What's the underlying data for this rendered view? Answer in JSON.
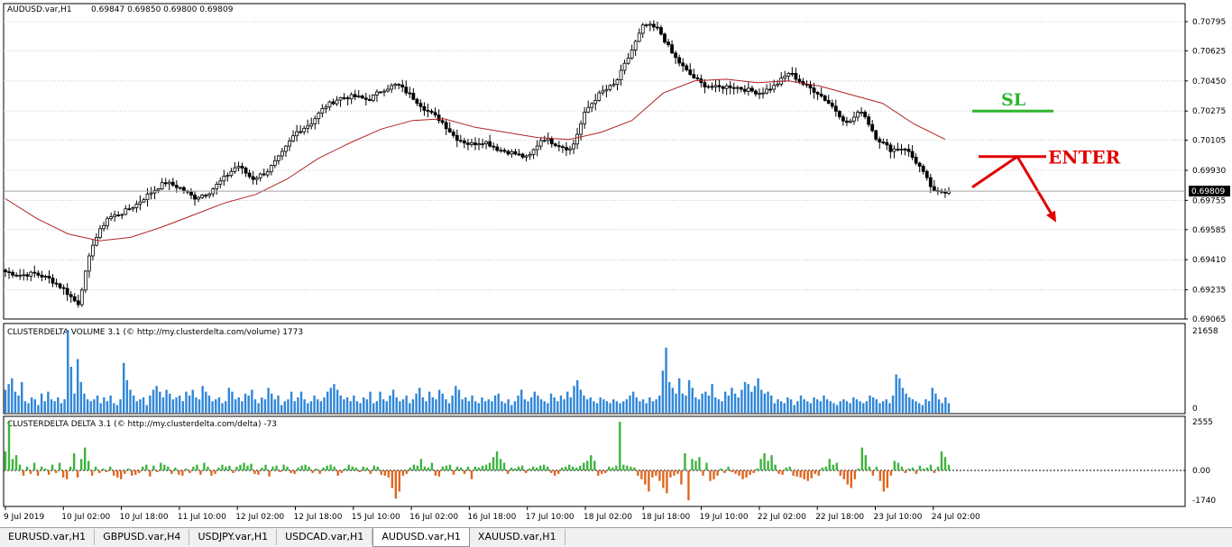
{
  "chart_data": [
    {
      "type": "candlestick",
      "title": "AUDUSD.var,H1",
      "ohlc_header": "0.69847 0.69850 0.69800 0.69809",
      "current_price": "0.69809",
      "ylim": [
        0.69065,
        0.70845
      ],
      "y_ticks": [
        "0.70795",
        "0.70625",
        "0.70450",
        "0.70275",
        "0.70105",
        "0.69930",
        "0.69755",
        "0.69585",
        "0.69410",
        "0.69235",
        "0.69065"
      ],
      "y_tick_values": [
        0.70795,
        0.70625,
        0.7045,
        0.70275,
        0.70105,
        0.6993,
        0.69755,
        0.69585,
        0.6941,
        0.69235,
        0.69065
      ],
      "x_ticks": [
        "9 Jul 2019",
        "10 Jul 02:00",
        "10 Jul 18:00",
        "11 Jul 10:00",
        "12 Jul 02:00",
        "12 Jul 18:00",
        "15 Jul 10:00",
        "16 Jul 02:00",
        "16 Jul 18:00",
        "17 Jul 10:00",
        "18 Jul 02:00",
        "18 Jul 18:00",
        "19 Jul 10:00",
        "22 Jul 02:00",
        "22 Jul 18:00",
        "23 Jul 10:00",
        "24 Jul 02:00"
      ],
      "price_anchors": [
        0.6934,
        0.6932,
        0.6933,
        0.693,
        0.6924,
        0.6915,
        0.695,
        0.6965,
        0.6968,
        0.6973,
        0.698,
        0.6986,
        0.6983,
        0.6977,
        0.698,
        0.6988,
        0.6996,
        0.6988,
        0.6992,
        0.7002,
        0.7015,
        0.702,
        0.703,
        0.7035,
        0.7036,
        0.7034,
        0.704,
        0.7043,
        0.7036,
        0.7028,
        0.7022,
        0.7012,
        0.7008,
        0.701,
        0.7005,
        0.7003,
        0.7,
        0.7012,
        0.7008,
        0.7005,
        0.7028,
        0.7038,
        0.7043,
        0.706,
        0.7078,
        0.7075,
        0.706,
        0.705,
        0.7043,
        0.7041,
        0.7042,
        0.704,
        0.7038,
        0.7042,
        0.705,
        0.7043,
        0.7038,
        0.703,
        0.702,
        0.7028,
        0.7012,
        0.7005,
        0.7006,
        0.6995,
        0.698,
        0.6981
      ],
      "moving_average": {
        "color": "#b22222",
        "values": [
          0.69765,
          0.6965,
          0.6956,
          0.6952,
          0.6954,
          0.696,
          0.6967,
          0.6974,
          0.6979,
          0.6988,
          0.7,
          0.7009,
          0.7017,
          0.7022,
          0.7023,
          0.7018,
          0.7015,
          0.7012,
          0.7011,
          0.7015,
          0.7022,
          0.7038,
          0.7045,
          0.7046,
          0.7044,
          0.7045,
          0.7042,
          0.7037,
          0.7032,
          0.702,
          0.7011
        ]
      },
      "annotations": [
        {
          "label": "SL",
          "color": "#2db52d",
          "price": 0.70275
        },
        {
          "label": "ENTER",
          "color": "#e00000",
          "price": 0.7001
        }
      ]
    },
    {
      "type": "bar",
      "title": "CLUSTERDELTA VOLUME 3.1 (© http://my.clusterdelta.com/volume) 1773",
      "ylim": [
        0,
        21658
      ],
      "y_ticks": [
        "21658",
        "0"
      ],
      "color": "#2f86d8",
      "values": [
        6000,
        7500,
        9000,
        5500,
        4500,
        8000,
        3000,
        2500,
        4000,
        3500,
        2000,
        5000,
        3000,
        5500,
        3500,
        3000,
        4000,
        2500,
        3500,
        21658,
        12000,
        5000,
        14000,
        8000,
        5000,
        3500,
        3000,
        3500,
        4500,
        2500,
        4000,
        3000,
        4500,
        2500,
        2000,
        3500,
        13000,
        8500,
        6000,
        4500,
        3000,
        3500,
        4000,
        2000,
        4500,
        6000,
        7000,
        5500,
        4000,
        6000,
        5000,
        3500,
        4000,
        4500,
        3000,
        5500,
        4500,
        6000,
        4000,
        3500,
        7000,
        5500,
        4500,
        3000,
        3500,
        4000,
        2500,
        3000,
        6500,
        5500,
        3500,
        4000,
        3000,
        5000,
        4500,
        6000,
        3500,
        2500,
        4000,
        3500,
        6500,
        5000,
        3500,
        4500,
        2000,
        3000,
        3500,
        5500,
        3000,
        4000,
        5500,
        3500,
        2500,
        3000,
        4500,
        3500,
        3000,
        4000,
        5500,
        6500,
        7500,
        6000,
        4500,
        3500,
        4000,
        3000,
        4500,
        3000,
        2500,
        4000,
        3500,
        5500,
        2500,
        3000,
        5500,
        3500,
        3000,
        4500,
        6000,
        4000,
        3000,
        3500,
        4500,
        2500,
        3500,
        5000,
        6500,
        4000,
        3000,
        5500,
        4000,
        3500,
        6000,
        5000,
        3500,
        2500,
        4500,
        7000,
        6000,
        3500,
        4000,
        3000,
        4500,
        3000,
        2500,
        4000,
        3000,
        3500,
        3000,
        4500,
        5000,
        3000,
        2500,
        3500,
        2000,
        3000,
        4500,
        6000,
        3500,
        3000,
        4000,
        5500,
        4500,
        3500,
        3000,
        2500,
        5000,
        4000,
        3000,
        4500,
        3500,
        5500,
        4000,
        7000,
        8500,
        6000,
        4500,
        3500,
        4000,
        3000,
        2500,
        4000,
        3500,
        3000,
        2500,
        3500,
        3000,
        2500,
        3000,
        3500,
        4500,
        5500,
        4000,
        3000,
        3500,
        2500,
        4000,
        3000,
        3500,
        4500,
        11000,
        17000,
        8000,
        6500,
        5000,
        9000,
        5000,
        4500,
        8500,
        6500,
        4000,
        3500,
        5000,
        5500,
        4500,
        7500,
        4000,
        3500,
        3000,
        5500,
        4500,
        6500,
        5000,
        4000,
        6000,
        8000,
        7500,
        5500,
        7000,
        9000,
        6000,
        5000,
        5500,
        4500,
        2500,
        3500,
        3000,
        2500,
        4000,
        3500,
        2000,
        3000,
        4500,
        3500,
        3000,
        2500,
        4000,
        3500,
        3000,
        4500,
        3500,
        3000,
        2500,
        2000,
        3000,
        3500,
        3000,
        2500,
        4000,
        3500,
        3000,
        2500,
        3000,
        4500,
        4000,
        3500,
        2500,
        3000,
        3500,
        2500,
        4500,
        10000,
        9000,
        6500,
        5000,
        4000,
        3500,
        3000,
        2500,
        2000,
        3500,
        3000,
        6500,
        5000,
        3500,
        2500,
        4000,
        2500
      ]
    },
    {
      "type": "bar",
      "title": "CLUSTERDELTA DELTA 3.1 (© http://my.clusterdelta.com/delta) -73",
      "ylim": [
        -1740,
        2555
      ],
      "y_ticks": [
        "2555",
        "0.00",
        "-1740"
      ],
      "positive_color": "#3cb43c",
      "negative_color": "#e0661e",
      "values": [
        1000,
        2555,
        600,
        800,
        300,
        -300,
        200,
        -200,
        400,
        -300,
        200,
        100,
        -250,
        300,
        -150,
        400,
        -400,
        -500,
        200,
        900,
        -400,
        600,
        1200,
        500,
        -300,
        200,
        -150,
        100,
        -100,
        200,
        -300,
        -400,
        -500,
        -200,
        100,
        -300,
        -250,
        -150,
        200,
        300,
        -350,
        250,
        -100,
        400,
        300,
        200,
        -200,
        150,
        -250,
        -300,
        100,
        -150,
        200,
        300,
        -250,
        400,
        200,
        -300,
        -200,
        150,
        300,
        200,
        250,
        -150,
        200,
        300,
        400,
        250,
        350,
        -200,
        -250,
        150,
        300,
        -350,
        200,
        250,
        -100,
        300,
        200,
        -150,
        -200,
        150,
        250,
        300,
        200,
        -150,
        100,
        -200,
        150,
        250,
        300,
        200,
        -300,
        -150,
        100,
        300,
        200,
        150,
        -100,
        200,
        150,
        -200,
        250,
        200,
        -250,
        -300,
        -400,
        -1000,
        -1600,
        -1200,
        -300,
        -200,
        150,
        300,
        250,
        600,
        200,
        150,
        400,
        -300,
        -350,
        200,
        250,
        300,
        -250,
        200,
        150,
        -200,
        200,
        -500,
        200,
        150,
        250,
        300,
        400,
        700,
        1000,
        600,
        400,
        -200,
        150,
        100,
        200,
        250,
        -150,
        100,
        200,
        150,
        250,
        300,
        200,
        -150,
        -300,
        -200,
        150,
        200,
        300,
        200,
        150,
        250,
        400,
        500,
        800,
        500,
        -300,
        -200,
        -150,
        200,
        150,
        250,
        2555,
        300,
        250,
        200,
        150,
        -300,
        -500,
        -800,
        -1200,
        -400,
        -300,
        -600,
        -1000,
        -1300,
        -400,
        -300,
        -200,
        -800,
        900,
        -1700,
        600,
        500,
        700,
        -300,
        400,
        -600,
        -500,
        -300,
        100,
        -150,
        200,
        -100,
        -200,
        -300,
        -500,
        -400,
        -250,
        -150,
        100,
        600,
        900,
        500,
        800,
        300,
        -200,
        -250,
        150,
        200,
        -300,
        -350,
        -400,
        -500,
        -600,
        -450,
        -200,
        -300,
        150,
        200,
        600,
        300,
        400,
        -300,
        -500,
        -800,
        -1000,
        -500,
        100,
        1200,
        800,
        200,
        -300,
        200,
        -600,
        -1200,
        -1000,
        -300,
        500,
        400,
        200,
        -150,
        100,
        150,
        -200,
        250,
        100,
        150,
        300,
        -150,
        200,
        1000,
        700,
        300
      ]
    }
  ],
  "tabs": [
    {
      "label": "EURUSD.var,H1",
      "active": false
    },
    {
      "label": "GBPUSD.var,H4",
      "active": false
    },
    {
      "label": "USDJPY.var,H1",
      "active": false
    },
    {
      "label": "USDCAD.var,H1",
      "active": false
    },
    {
      "label": "AUDUSD.var,H1",
      "active": true
    },
    {
      "label": "XAUUSD.var,H1",
      "active": false
    }
  ]
}
